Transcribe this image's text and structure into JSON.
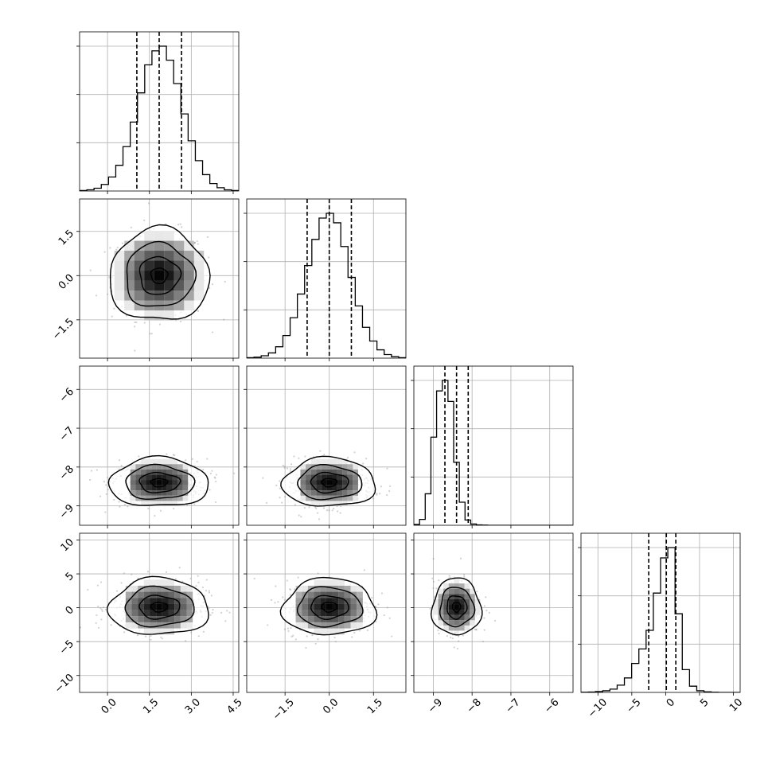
{
  "chart_data": {
    "type": "corner",
    "parameters": [
      {
        "range": [
          -1.0,
          4.7
        ],
        "ticks": [
          0.0,
          1.5,
          3.0,
          4.5
        ],
        "tick_labels": [
          "0.0",
          "1.5",
          "3.0",
          "4.5"
        ],
        "quantiles": [
          1.05,
          1.85,
          2.65
        ],
        "mean": 1.85,
        "sd": 0.85
      },
      {
        "range": [
          -2.8,
          2.6
        ],
        "ticks": [
          -1.5,
          0.0,
          1.5
        ],
        "tick_labels": [
          "−1.5",
          "0.0",
          "1.5"
        ],
        "quantiles": [
          -0.75,
          0.0,
          0.75
        ],
        "mean": 0.0,
        "sd": 0.75
      },
      {
        "range": [
          -9.5,
          -5.4
        ],
        "ticks": [
          -9,
          -8,
          -7,
          -6
        ],
        "tick_labels": [
          "−9",
          "−8",
          "−7",
          "−6"
        ],
        "quantiles": [
          -8.7,
          -8.4,
          -8.1
        ],
        "mean": -8.4,
        "sd": 0.3
      },
      {
        "range": [
          -12.5,
          11
        ],
        "ticks": [
          -10,
          -5,
          0,
          5,
          10
        ],
        "tick_labels": [
          "−10",
          "−5",
          "0",
          "5",
          "10"
        ],
        "quantiles": [
          -2.5,
          0.1,
          1.5
        ],
        "mean": 0.1,
        "sd": 2.0
      }
    ],
    "histograms": [
      {
        "param": 0,
        "bins": 22,
        "counts": [
          2,
          5,
          12,
          28,
          60,
          110,
          190,
          295,
          420,
          540,
          600,
          620,
          560,
          460,
          330,
          215,
          130,
          70,
          32,
          14,
          5,
          2
        ]
      },
      {
        "param": 1,
        "bins": 22,
        "counts": [
          2,
          4,
          10,
          22,
          48,
          95,
          170,
          270,
          390,
          500,
          590,
          610,
          570,
          470,
          340,
          220,
          130,
          72,
          35,
          15,
          6,
          2
        ]
      },
      {
        "param": 2,
        "bins": 28,
        "counts": [
          4,
          28,
          150,
          420,
          640,
          690,
          590,
          300,
          110,
          25,
          6,
          2,
          1,
          0,
          0,
          0,
          0,
          0,
          0,
          0,
          0,
          0,
          0,
          0,
          0,
          0,
          0,
          0
        ]
      },
      {
        "param": 3,
        "bins": 22,
        "counts": [
          1,
          2,
          4,
          8,
          16,
          35,
          70,
          140,
          210,
          300,
          480,
          650,
          700,
          380,
          110,
          30,
          8,
          3,
          1,
          0,
          0,
          0
        ]
      }
    ],
    "legend": false,
    "grid": true
  }
}
